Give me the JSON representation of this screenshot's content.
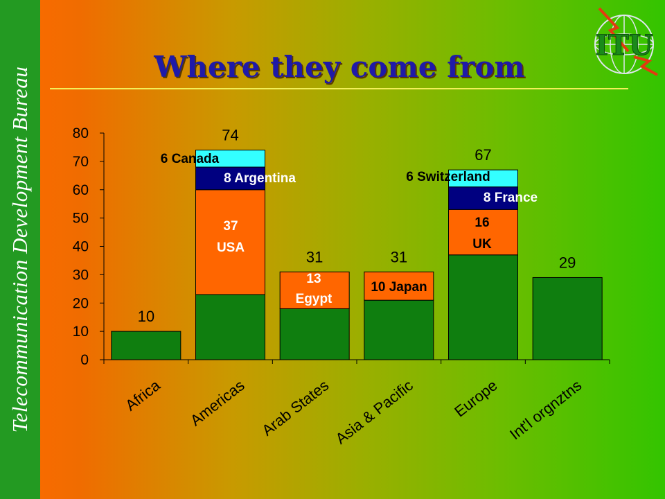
{
  "sidebar": {
    "text": "Telecommunication Development Bureau"
  },
  "header": {
    "title": "Where they come from",
    "logo_text": "ITU"
  },
  "colors": {
    "base": "#0f7e0f",
    "orange": "#ff6600",
    "navy": "#000080",
    "cyan": "#33ffff",
    "title": "#1f1aa8"
  },
  "chart_data": {
    "type": "bar",
    "stacked": true,
    "categories": [
      "Africa",
      "Americas",
      "Arab States",
      "Asia & Pacific",
      "Europe",
      "Int'l orgnztns"
    ],
    "ylim": [
      0,
      80
    ],
    "yticks": [
      "0",
      "10",
      "20",
      "30",
      "40",
      "50",
      "60",
      "70",
      "80"
    ],
    "totals": [
      "10",
      "74",
      "31",
      "31",
      "67",
      "29"
    ],
    "bars": [
      {
        "segments": [
          {
            "value": 10,
            "color": "base"
          }
        ]
      },
      {
        "segments": [
          {
            "value": 23,
            "color": "base"
          },
          {
            "value": 37,
            "color": "orange",
            "label": [
              "37",
              "USA"
            ]
          },
          {
            "value": 8,
            "color": "navy",
            "label": [
              "8 Argentina"
            ]
          },
          {
            "value": 6,
            "color": "cyan",
            "label": [
              "6 Canada"
            ]
          }
        ]
      },
      {
        "segments": [
          {
            "value": 18,
            "color": "base"
          },
          {
            "value": 13,
            "color": "orange",
            "label": [
              "13",
              "Egypt"
            ]
          }
        ]
      },
      {
        "segments": [
          {
            "value": 21,
            "color": "base"
          },
          {
            "value": 10,
            "color": "orange",
            "label": [
              "10 Japan"
            ]
          }
        ]
      },
      {
        "segments": [
          {
            "value": 37,
            "color": "base"
          },
          {
            "value": 16,
            "color": "orange",
            "label": [
              "16",
              "UK"
            ]
          },
          {
            "value": 8,
            "color": "navy",
            "label": [
              "8 France"
            ]
          },
          {
            "value": 6,
            "color": "cyan",
            "label": [
              "6 Switzerland"
            ]
          }
        ]
      },
      {
        "segments": [
          {
            "value": 29,
            "color": "base"
          }
        ]
      }
    ]
  }
}
